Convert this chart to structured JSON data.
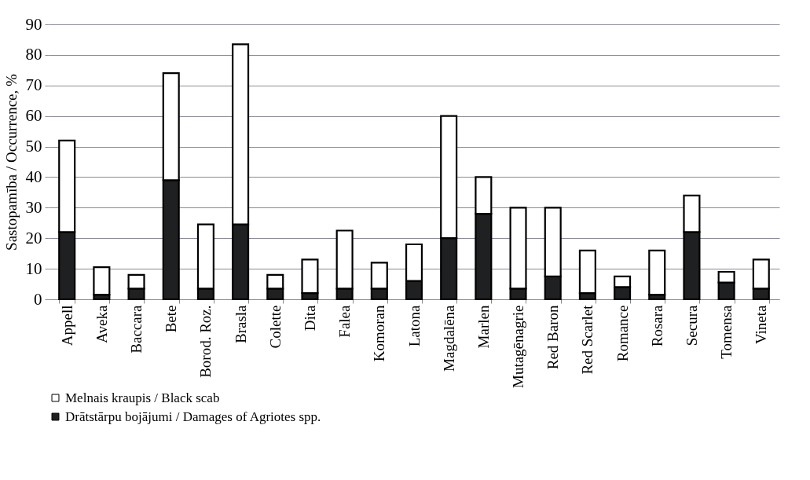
{
  "chart_data": {
    "type": "bar",
    "stacked": true,
    "ylabel": "Sastopamība / Occurrence, %",
    "categories": [
      "Appell",
      "Aveka",
      "Baccara",
      "Bete",
      "Borod. Roz.",
      "Brasla",
      "Colette",
      "Dita",
      "Falea",
      "Komoran",
      "Latona",
      "Magdalēna",
      "Marlen",
      "Mutagēnagrie",
      "Red Baron",
      "Red Scarlet",
      "Romance",
      "Rosara",
      "Secura",
      "Tomensa",
      "Vineta"
    ],
    "series": [
      {
        "name": "Drātstārpu bojājumi / Damages of Agriotes spp.",
        "color": "#1f2022",
        "values": [
          22,
          1.5,
          3.5,
          39,
          3.5,
          24.5,
          3.5,
          2,
          3.5,
          3.5,
          6,
          20,
          28,
          3.5,
          7.5,
          2,
          4,
          1.5,
          22,
          5.5,
          3.5
        ]
      },
      {
        "name": "Melnais kraupis / Black scab",
        "color": "#ffffff",
        "values": [
          30,
          9,
          4.5,
          35,
          21,
          59,
          4.5,
          11,
          19,
          8.5,
          12,
          40,
          12,
          26.5,
          22.5,
          14,
          3.5,
          14.5,
          12,
          3.5,
          9.5
        ]
      }
    ],
    "ylim": [
      0,
      90
    ],
    "yticks": [
      0,
      10,
      20,
      30,
      40,
      50,
      60,
      70,
      80,
      90
    ],
    "grid": "y",
    "legend": "bottom"
  }
}
